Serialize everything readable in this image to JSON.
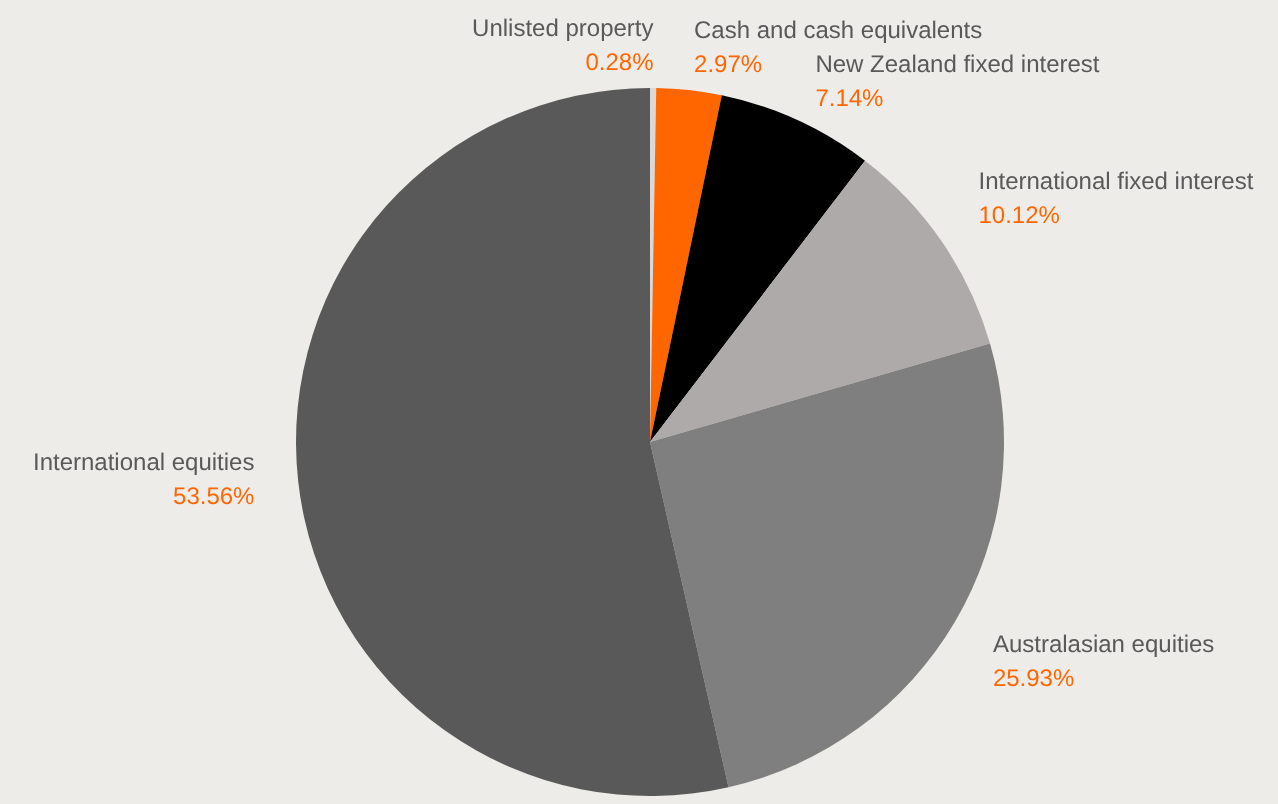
{
  "chart_data": {
    "type": "pie",
    "categories": [
      "Unlisted property",
      "Cash and cash equivalents",
      "New Zealand fixed interest",
      "International fixed interest",
      "Australasian equities",
      "International equities"
    ],
    "values": [
      0.28,
      2.97,
      7.14,
      10.12,
      25.93,
      53.56
    ],
    "value_labels": [
      "0.28%",
      "2.97%",
      "7.14%",
      "10.12%",
      "25.93%",
      "53.56%"
    ],
    "colors": [
      "#d9d9d9",
      "#ff6600",
      "#000000",
      "#aeaaaa",
      "#7f7f7f",
      "#595959"
    ],
    "legend": false
  }
}
